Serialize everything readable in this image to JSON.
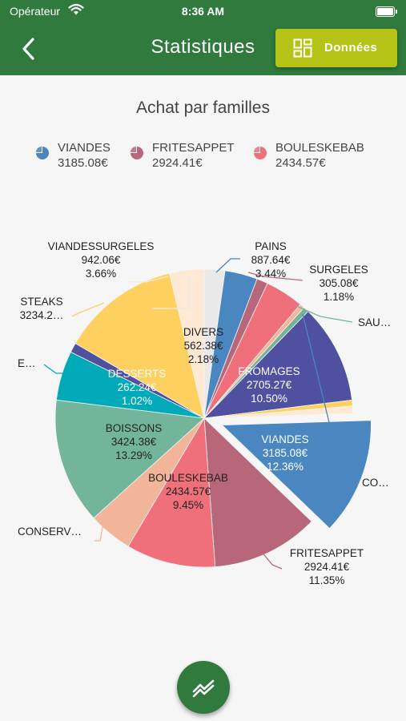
{
  "status_bar": {
    "carrier": "Opérateur",
    "time": "8:36 AM"
  },
  "header": {
    "title": "Statistiques",
    "data_button_label": "Données"
  },
  "colors": {
    "header": "#2f7a3c",
    "accent": "#b5c216"
  },
  "legend": [
    {
      "name": "VIANDES",
      "value": "3185.08€",
      "color": "#4a86c0"
    },
    {
      "name": "FRITESAPPET",
      "value": "2924.41€",
      "color": "#b8677a"
    },
    {
      "name": "BOULESKEBAB",
      "value": "2434.57€",
      "color": "#ef6f7a"
    }
  ],
  "chart_data": {
    "type": "pie",
    "title": "Achat par familles",
    "slices": [
      {
        "name": "DIVERS",
        "value": 562.38,
        "amount": "562.38€",
        "percent": "2.18%",
        "color": "#e9e9e9"
      },
      {
        "name": "PAINS",
        "value": 887.64,
        "amount": "887.64€",
        "percent": "3.44%",
        "color": "#4a86c0"
      },
      {
        "name": "SURGELES",
        "value": 305.08,
        "amount": "305.08€",
        "percent": "1.18%",
        "color": "#b8677a"
      },
      {
        "name": "",
        "value": 1050.0,
        "amount": "",
        "percent": "",
        "color": "#ef6f7a"
      },
      {
        "name": "",
        "value": 130.0,
        "amount": "",
        "percent": "",
        "color": "#f3b59a"
      },
      {
        "name": "SAU…",
        "value": 150.0,
        "amount": "",
        "percent": "",
        "color": "#72b59a"
      },
      {
        "name": "FROMAGES",
        "value": 2705.27,
        "amount": "2705.27€",
        "percent": "10.50%",
        "color": "#5050a0"
      },
      {
        "name": "",
        "value": 160.0,
        "amount": "",
        "percent": "",
        "color": "#fdd060"
      },
      {
        "name": "",
        "value": 200.0,
        "amount": "",
        "percent": "",
        "color": "#fde9d4"
      },
      {
        "name": "VIANDES",
        "value": 3185.08,
        "amount": "3185.08€",
        "percent": "12.36%",
        "color": "#4a86c0"
      },
      {
        "name": "FRITESAPPET",
        "value": 2924.41,
        "amount": "2924.41€",
        "percent": "11.35%",
        "color": "#b8677a"
      },
      {
        "name": "BOULESKEBAB",
        "value": 2434.57,
        "amount": "2434.57€",
        "percent": "9.45%",
        "color": "#ef6f7a"
      },
      {
        "name": "CONSERV…",
        "value": 1200.0,
        "amount": "",
        "percent": "",
        "color": "#f3b59a"
      },
      {
        "name": "BOISSONS",
        "value": 3424.38,
        "amount": "3424.38€",
        "percent": "13.29%",
        "color": "#72b59a"
      },
      {
        "name": "E…",
        "value": 1350.0,
        "amount": "",
        "percent": "",
        "color": "#00aab8"
      },
      {
        "name": "DESSERTS",
        "value": 262.24,
        "amount": "262.24€",
        "percent": "1.02%",
        "color": "#5050a0"
      },
      {
        "name": "STEAKS",
        "value": 3234.2,
        "amount": "3234.2…",
        "percent": "",
        "color": "#fdd060"
      },
      {
        "name": "VIANDESSURGELES",
        "value": 942.06,
        "amount": "942.06€",
        "percent": "3.66%",
        "color": "#fde9d4"
      }
    ],
    "labels": [
      {
        "lines": [
          "VIANDESSURGELES",
          "942.06€",
          "3.66%"
        ]
      },
      {
        "lines": [
          "PAINS",
          "887.64€",
          "3.44%"
        ]
      },
      {
        "lines": [
          "SURGELES",
          "305.08€",
          "1.18%"
        ]
      },
      {
        "lines": [
          "SAU…"
        ]
      },
      {
        "lines": [
          "STEAKS",
          "3234.2…"
        ]
      },
      {
        "lines": [
          "DIVERS",
          "562.38€",
          "2.18%"
        ]
      },
      {
        "lines": [
          "E…"
        ]
      },
      {
        "lines": [
          "DESSERTS",
          "262.24€",
          "1.02%"
        ]
      },
      {
        "lines": [
          "FROMAGES",
          "2705.27€",
          "10.50%"
        ]
      },
      {
        "lines": [
          "BOISSONS",
          "3424.38€",
          "13.29%"
        ]
      },
      {
        "lines": [
          "VIANDES",
          "3185.08€",
          "12.36%"
        ]
      },
      {
        "lines": [
          "CO…"
        ]
      },
      {
        "lines": [
          "BOULESKEBAB",
          "2434.57€",
          "9.45%"
        ]
      },
      {
        "lines": [
          "CONSERV…"
        ]
      },
      {
        "lines": [
          "FRITESAPPET",
          "2924.41€",
          "11.35%"
        ]
      }
    ]
  }
}
